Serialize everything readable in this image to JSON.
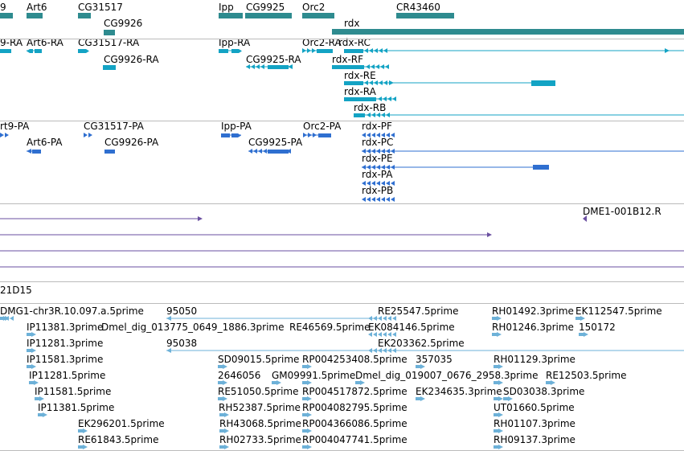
{
  "colors": {
    "gene": "#2e8b8f",
    "transcript": "#13a3c4",
    "protein": "#2f6fd0",
    "clone": "#6a4fa0",
    "est": "#6db1d8",
    "divider": "#bbbbbb"
  },
  "tracks": {
    "genes": {
      "labels": [
        "9",
        "Art6",
        "CG31517",
        "CG9926",
        "Ipp",
        "CG9925",
        "Orc2",
        "rdx",
        "CR43460"
      ]
    },
    "transcripts": {
      "labels": [
        "9-RA",
        "Art6-RA",
        "CG31517-RA",
        "CG9926-RA",
        "Ipp-RA",
        "CG9925-RA",
        "Orc2-RA",
        "rdx-RC",
        "rdx-RF",
        "rdx-RE",
        "rdx-RA",
        "rdx-RB"
      ]
    },
    "proteins": {
      "labels": [
        "rt9-PA",
        "Art6-PA",
        "CG31517-PA",
        "CG9926-PA",
        "Ipp-PA",
        "CG9925-PA",
        "Orc2-PA",
        "rdx-PF",
        "rdx-PC",
        "rdx-PE",
        "rdx-PA",
        "rdx-PB"
      ]
    },
    "clones": {
      "labels": [
        "DME1-001B12.R"
      ]
    },
    "scaffold": {
      "labels": [
        "21D15"
      ]
    },
    "ests": {
      "labels": [
        "DMG1-chr3R.10.097.a.5prime",
        "95050",
        "RE25547.5prime",
        "RH01492.3prime",
        "EK112547.5prime",
        "IP11381.3prime",
        "Dmel_dig_013775_0649_1886.3prime",
        "RE46569.5prime",
        "EK084146.5prime",
        "RH01246.3prime",
        "150172",
        "IP11281.3prime",
        "95038",
        "EK203362.5prime",
        "IP11581.3prime",
        "SD09015.5prime",
        "RP004253408.5prime",
        "357035",
        "RH01129.3prime",
        "IP11281.5prime",
        "2646056",
        "GM09991.5prime",
        "Dmel_dig_019007_0676_2958.3prime",
        "RE12503.5prime",
        "IP11581.5prime",
        "RE51050.5prime",
        "RP004517872.5prime",
        "EK234635.3prime",
        "SD03038.3prime",
        "IP11381.5prime",
        "RH52387.5prime",
        "RP004082795.5prime",
        "UT01660.5prime",
        "EK296201.5prime",
        "RH43068.5prime",
        "RP004366086.5prime",
        "RH01107.3prime",
        "RE61843.5prime",
        "RH02733.5prime",
        "RP004047741.5prime",
        "RH09137.3prime"
      ]
    }
  }
}
